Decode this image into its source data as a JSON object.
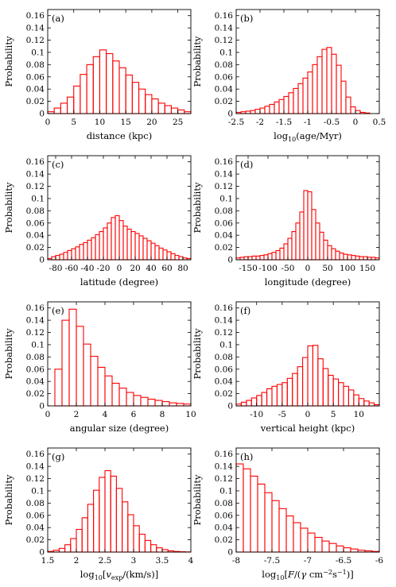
{
  "figure": {
    "ylabel": "Probability",
    "bar_color": "#ff0000",
    "yticks": [
      "0",
      "0.02",
      "0.04",
      "0.06",
      "0.08",
      "0.1",
      "0.12",
      "0.14",
      "0.16"
    ]
  },
  "chart_data": [
    {
      "tag": "(a)",
      "type": "bar",
      "xlabel": "distance (kpc)",
      "ylabel": "Probability",
      "xlim": [
        0,
        27.5
      ],
      "ylim": [
        0,
        0.17
      ],
      "xticks": [
        0,
        5,
        10,
        15,
        20,
        25
      ],
      "xtick_labels": [
        "0",
        "5",
        "10",
        "15",
        "20",
        "25"
      ],
      "bin_start": 0,
      "bin_width": 1.25,
      "values": [
        0.003,
        0.009,
        0.017,
        0.027,
        0.045,
        0.064,
        0.08,
        0.093,
        0.104,
        0.098,
        0.086,
        0.075,
        0.063,
        0.051,
        0.04,
        0.031,
        0.024,
        0.017,
        0.013,
        0.009,
        0.006,
        0.003
      ]
    },
    {
      "tag": "(b)",
      "type": "bar",
      "xlabel": "log10(age/Myr)",
      "ylabel": "Probability",
      "xlim": [
        -2.5,
        0.5
      ],
      "ylim": [
        0,
        0.17
      ],
      "xticks": [
        -2.5,
        -2,
        -1.5,
        -1,
        -0.5,
        0,
        0.5
      ],
      "xtick_labels": [
        "-2.5",
        "-2",
        "-1.5",
        "-1",
        "-0.5",
        "0",
        "0.5"
      ],
      "bin_start": -2.5,
      "bin_width": 0.1,
      "values": [
        0.002,
        0.003,
        0.004,
        0.005,
        0.007,
        0.009,
        0.012,
        0.015,
        0.019,
        0.023,
        0.028,
        0.034,
        0.041,
        0.049,
        0.058,
        0.068,
        0.08,
        0.093,
        0.105,
        0.108,
        0.097,
        0.079,
        0.053,
        0.027,
        0.011,
        0.005,
        0.002,
        0.001
      ]
    },
    {
      "tag": "(c)",
      "type": "bar",
      "xlabel": "latitude (degree)",
      "ylabel": "Probability",
      "xlim": [
        -90,
        90
      ],
      "ylim": [
        0,
        0.17
      ],
      "xticks": [
        -80,
        -60,
        -40,
        -20,
        0,
        20,
        40,
        60,
        80
      ],
      "xtick_labels": [
        "-80",
        "-60",
        "-40",
        "-20",
        "0",
        "20",
        "40",
        "60",
        "80"
      ],
      "bin_start": -90,
      "bin_width": 5,
      "values": [
        0.002,
        0.005,
        0.007,
        0.009,
        0.012,
        0.015,
        0.018,
        0.021,
        0.025,
        0.028,
        0.032,
        0.036,
        0.041,
        0.046,
        0.052,
        0.06,
        0.069,
        0.072,
        0.064,
        0.055,
        0.05,
        0.046,
        0.043,
        0.039,
        0.035,
        0.031,
        0.027,
        0.023,
        0.019,
        0.016,
        0.013,
        0.01,
        0.007,
        0.005,
        0.003,
        0.002
      ]
    },
    {
      "tag": "(d)",
      "type": "bar",
      "xlabel": "longitude (degree)",
      "ylabel": "Probability",
      "xlim": [
        -180,
        180
      ],
      "ylim": [
        0,
        0.17
      ],
      "xticks": [
        -150,
        -100,
        -50,
        0,
        50,
        100,
        150
      ],
      "xtick_labels": [
        "-150",
        "-100",
        "-50",
        "0",
        "50",
        "100",
        "150"
      ],
      "bin_start": -180,
      "bin_width": 10,
      "values": [
        0.003,
        0.004,
        0.005,
        0.005,
        0.006,
        0.006,
        0.007,
        0.008,
        0.01,
        0.012,
        0.015,
        0.019,
        0.026,
        0.035,
        0.046,
        0.06,
        0.078,
        0.113,
        0.111,
        0.082,
        0.06,
        0.045,
        0.032,
        0.023,
        0.018,
        0.014,
        0.011,
        0.009,
        0.008,
        0.007,
        0.006,
        0.005,
        0.005,
        0.004,
        0.004,
        0.003
      ]
    },
    {
      "tag": "(e)",
      "type": "bar",
      "xlabel": "angular size (degree)",
      "ylabel": "Probability",
      "xlim": [
        0,
        10
      ],
      "ylim": [
        0,
        0.17
      ],
      "xticks": [
        0,
        2,
        4,
        6,
        8,
        10
      ],
      "xtick_labels": [
        "0",
        "2",
        "4",
        "6",
        "8",
        "10"
      ],
      "bin_start": 0.5,
      "bin_width": 0.5,
      "values": [
        0.06,
        0.14,
        0.158,
        0.13,
        0.101,
        0.081,
        0.063,
        0.049,
        0.037,
        0.029,
        0.022,
        0.017,
        0.014,
        0.011,
        0.009,
        0.007,
        0.005,
        0.004,
        0.003
      ]
    },
    {
      "tag": "(f)",
      "type": "bar",
      "xlabel": "vertical height (kpc)",
      "ylabel": "Probability",
      "xlim": [
        -14,
        14
      ],
      "ylim": [
        0,
        0.17
      ],
      "xticks": [
        -10,
        -5,
        0,
        5,
        10
      ],
      "xtick_labels": [
        "-10",
        "-5",
        "0",
        "5",
        "10"
      ],
      "bin_start": -14,
      "bin_width": 1,
      "values": [
        0.003,
        0.006,
        0.009,
        0.013,
        0.017,
        0.022,
        0.028,
        0.032,
        0.035,
        0.038,
        0.045,
        0.053,
        0.064,
        0.079,
        0.098,
        0.099,
        0.077,
        0.061,
        0.05,
        0.044,
        0.038,
        0.032,
        0.026,
        0.018,
        0.012,
        0.008,
        0.005,
        0.002
      ]
    },
    {
      "tag": "(g)",
      "type": "bar",
      "xlabel": "log10[vexp/(km/s)]",
      "ylabel": "Probability",
      "xlim": [
        1.5,
        4
      ],
      "ylim": [
        0,
        0.17
      ],
      "xticks": [
        1.5,
        2,
        2.5,
        3,
        3.5,
        4
      ],
      "xtick_labels": [
        "1.5",
        "2",
        "2.5",
        "3",
        "3.5",
        "4"
      ],
      "bin_start": 1.5,
      "bin_width": 0.1,
      "values": [
        0.001,
        0.003,
        0.006,
        0.012,
        0.022,
        0.037,
        0.056,
        0.078,
        0.101,
        0.122,
        0.133,
        0.124,
        0.104,
        0.082,
        0.061,
        0.043,
        0.029,
        0.019,
        0.012,
        0.007,
        0.004,
        0.002,
        0.001,
        0.0005,
        0.0002
      ]
    },
    {
      "tag": "(h)",
      "type": "bar",
      "xlabel": "log10[F/(γ cm−2s−1)]",
      "ylabel": "Probability",
      "xlim": [
        -8,
        -6
      ],
      "ylim": [
        0,
        0.17
      ],
      "xticks": [
        -8,
        -7.5,
        -7,
        -6.5,
        -6
      ],
      "xtick_labels": [
        "-8",
        "-7.5",
        "-7",
        "-6.5",
        "-6"
      ],
      "bin_start": -8,
      "bin_width": 0.1,
      "values": [
        0.144,
        0.136,
        0.124,
        0.111,
        0.097,
        0.084,
        0.071,
        0.059,
        0.048,
        0.039,
        0.031,
        0.024,
        0.018,
        0.014,
        0.01,
        0.007,
        0.005,
        0.003,
        0.002,
        0.001
      ]
    }
  ]
}
